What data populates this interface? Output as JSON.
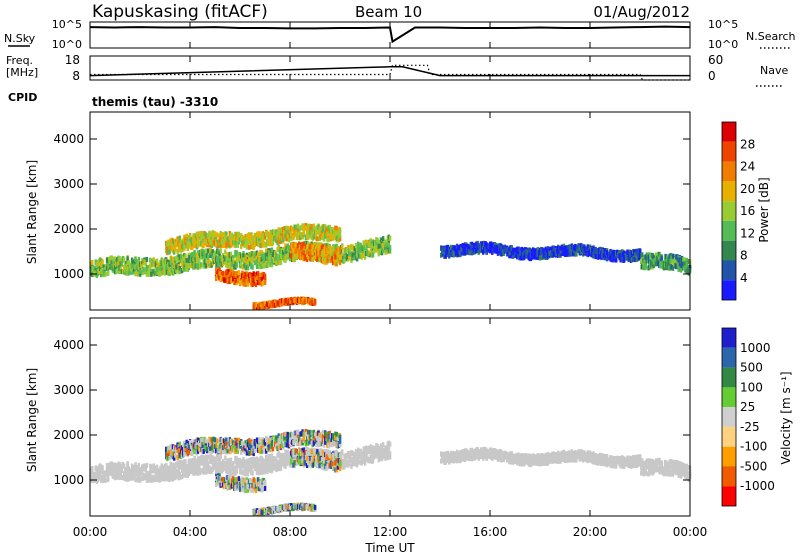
{
  "header": {
    "station": "Kapuskasing (fitACF)",
    "beam": "Beam 10",
    "date": "01/Aug/2012"
  },
  "noise_panel": {
    "left_label": "N.Sky",
    "left_ticks": [
      "10^5",
      "10^0"
    ],
    "right_label": "N.Search",
    "right_ticks": [
      "10^5",
      "10^0"
    ]
  },
  "freq_panel": {
    "label_line1": "Freq.",
    "label_line2": "[MHz]",
    "left_ticks": [
      "18",
      "8"
    ],
    "right_label": "Nave",
    "right_ticks": [
      "60",
      "0"
    ]
  },
  "cpid": {
    "label": "CPID",
    "value": "themis (tau) -3310"
  },
  "colors": {
    "power": [
      "#1a1aff",
      "#2255aa",
      "#33884f",
      "#55bb55",
      "#99cc33",
      "#e8b000",
      "#f07d00",
      "#ee4400",
      "#dd0000"
    ],
    "velocity": [
      "#ff0000",
      "#f25a00",
      "#ff9e00",
      "#ffd27f",
      "#cfcfcf",
      "#66cc33",
      "#338844",
      "#2a66aa",
      "#1e1ecc"
    ],
    "ground_scatter": "#c8c8c8"
  },
  "chart_data": [
    {
      "type": "line",
      "title": "N.Sky / N.Search",
      "x": [
        0,
        1,
        2,
        3,
        4,
        5,
        6,
        7,
        8,
        9,
        10,
        11,
        12,
        12.1,
        13,
        14,
        15,
        16,
        17,
        18,
        19,
        20,
        21,
        22,
        23,
        24
      ],
      "y_log10": [
        4.3,
        4.2,
        4.3,
        4.2,
        4.2,
        4.3,
        4.1,
        4.1,
        4.0,
        4.0,
        4.1,
        4.1,
        4.2,
        1.0,
        4.2,
        4.2,
        4.1,
        4.1,
        4.1,
        4.2,
        4.1,
        4.1,
        4.2,
        4.3,
        4.4,
        4.3
      ],
      "yscale": "log",
      "ylim": [
        "10^0",
        "10^5"
      ]
    },
    {
      "type": "line",
      "series": [
        {
          "name": "Freq.",
          "x": [
            0,
            12,
            12.5,
            14,
            24
          ],
          "y": [
            10,
            14,
            14,
            10,
            10
          ]
        },
        {
          "name": "Nave",
          "x": [
            0,
            12,
            12.1,
            13.5,
            13.6,
            22,
            22.1,
            24
          ],
          "y": [
            15,
            15,
            40,
            40,
            15,
            15,
            0,
            0
          ]
        }
      ],
      "xlim": [
        0,
        24
      ]
    },
    {
      "type": "heatmap",
      "title": "Power",
      "ylabel": "Slant Range [km]",
      "colorbar_label": "Power [dB]",
      "colorbar_ticks": [
        "28",
        "24",
        "20",
        "16",
        "12",
        "8",
        "4"
      ],
      "ylim": [
        200,
        4600
      ],
      "yticks": [
        "1000",
        "2000",
        "3000",
        "4000"
      ],
      "xlim": [
        0,
        24
      ],
      "regions": [
        {
          "t0": 0,
          "t1": 12,
          "r_center_start": 1150,
          "r_center_end": 1650,
          "width": 350,
          "level": 4
        },
        {
          "t0": 3,
          "t1": 10,
          "r_center_start": 1700,
          "r_center_end": 2000,
          "width": 300,
          "level": 5
        },
        {
          "t0": 5,
          "t1": 7,
          "r_center_start": 1000,
          "r_center_end": 1000,
          "width": 250,
          "level": 7
        },
        {
          "t0": 8,
          "t1": 10,
          "r_center_start": 1500,
          "r_center_end": 1500,
          "width": 350,
          "level": 6
        },
        {
          "t0": 6.5,
          "t1": 9,
          "r_center_start": 400,
          "r_center_end": 400,
          "width": 80,
          "level": 7
        },
        {
          "t0": 14,
          "t1": 22,
          "r_center_start": 1600,
          "r_center_end": 1500,
          "width": 200,
          "level": 1
        },
        {
          "t0": 22,
          "t1": 24,
          "r_center_start": 1350,
          "r_center_end": 1200,
          "width": 300,
          "level": 3
        }
      ]
    },
    {
      "type": "heatmap",
      "title": "Velocity",
      "ylabel": "Slant Range [km]",
      "xlabel": "Time UT",
      "colorbar_label": "Velocity [m s⁻¹]",
      "colorbar_ticks": [
        "1000",
        "500",
        "100",
        "25",
        "-25",
        "-100",
        "-500",
        "-1000"
      ],
      "ylim": [
        200,
        4600
      ],
      "yticks": [
        "1000",
        "2000",
        "3000",
        "4000"
      ],
      "xticks": [
        "00:00",
        "04:00",
        "08:00",
        "12:00",
        "16:00",
        "20:00",
        "00:00"
      ],
      "xlim": [
        0,
        24
      ]
    }
  ]
}
